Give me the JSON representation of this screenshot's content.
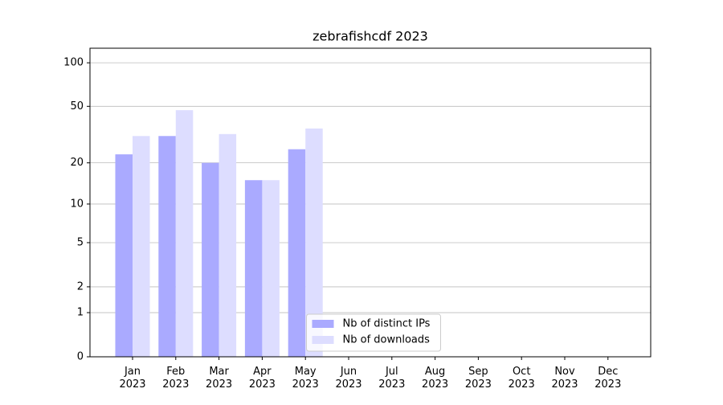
{
  "chart_data": {
    "type": "bar",
    "title": "zebrafishcdf 2023",
    "categories": [
      "Jan 2023",
      "Feb 2023",
      "Mar 2023",
      "Apr 2023",
      "May 2023",
      "Jun 2023",
      "Jul 2023",
      "Aug 2023",
      "Sep 2023",
      "Oct 2023",
      "Nov 2023",
      "Dec 2023"
    ],
    "series": [
      {
        "name": "Nb of distinct IPs",
        "color": "#aaaaff",
        "values": [
          23,
          31,
          20,
          15,
          25,
          null,
          null,
          null,
          null,
          null,
          null,
          null
        ]
      },
      {
        "name": "Nb of downloads",
        "color": "#ddddff",
        "values": [
          31,
          47,
          32,
          15,
          35,
          null,
          null,
          null,
          null,
          null,
          null,
          null
        ]
      }
    ],
    "yscale": "log1p",
    "ylim": [
      0,
      126
    ],
    "yticks": [
      0,
      1,
      2,
      5,
      10,
      20,
      50,
      100
    ],
    "grid": true,
    "legend": "lower center"
  }
}
